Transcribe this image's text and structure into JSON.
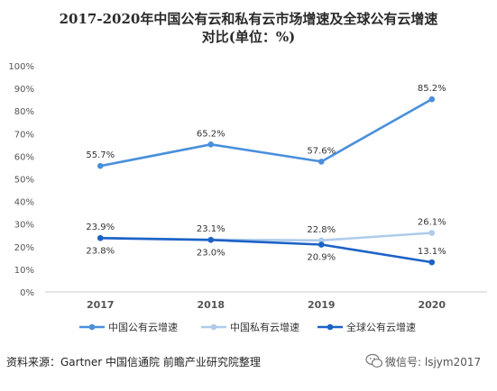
{
  "title_lines": [
    "2017-2020年中国公有云和私有云市场增速及全球公有云增速",
    "对比(单位：%)"
  ],
  "source": "资料来源：Gartner 中国信通院 前瞻产业研究院整理",
  "brand": {
    "text": "微信号: lsjym2017",
    "icon": "wechat-icon"
  },
  "colors": {
    "axis": "#c8c8c8",
    "tick_text": "#555555",
    "value_text": "#333333"
  },
  "chart_data": {
    "type": "line",
    "title": "2017-2020年中国公有云和私有云市场增速及全球公有云增速对比(单位：%)",
    "categories": [
      "2017",
      "2018",
      "2019",
      "2020"
    ],
    "series": [
      {
        "name": "中国公有云增速",
        "values": [
          55.7,
          65.2,
          57.6,
          85.2
        ],
        "labels": [
          "55.7%",
          "65.2%",
          "57.6%",
          "85.2%"
        ],
        "color": "#4a8fdc",
        "label_position": [
          "above",
          "above",
          "above",
          "above"
        ]
      },
      {
        "name": "中国私有云增速",
        "values": [
          23.9,
          23.1,
          22.8,
          26.1
        ],
        "labels": [
          "23.9%",
          "23.1%",
          "22.8%",
          "26.1%"
        ],
        "color": "#aecbeb",
        "label_position": [
          "above",
          "above",
          "above",
          "above"
        ]
      },
      {
        "name": "全球公有云增速",
        "values": [
          23.8,
          23.0,
          20.9,
          13.1
        ],
        "labels": [
          "23.8%",
          "23.0%",
          "20.9%",
          "13.1%"
        ],
        "color": "#1c62c6",
        "label_position": [
          "below",
          "below",
          "below",
          "above"
        ]
      }
    ],
    "ylim": [
      0,
      100
    ],
    "yticks": [
      0,
      10,
      20,
      30,
      40,
      50,
      60,
      70,
      80,
      90,
      100
    ],
    "ytick_labels": [
      "0%",
      "10%",
      "20%",
      "30%",
      "40%",
      "50%",
      "60%",
      "70%",
      "80%",
      "90%",
      "100%"
    ],
    "xlabel": "",
    "ylabel": "",
    "grid": false,
    "legend": "bottom"
  }
}
